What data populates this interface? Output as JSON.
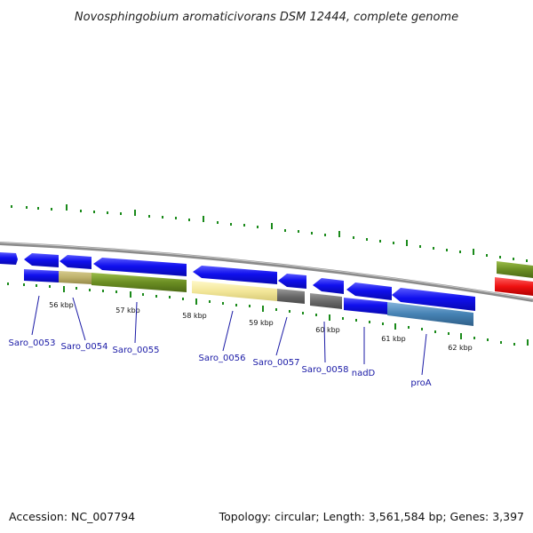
{
  "title": "Novosphingobium aromaticivorans DSM 12444, complete genome",
  "footer": {
    "accession": "Accession: NC_007794",
    "topology": "Topology: circular; Length: 3,561,584 bp; Genes: 3,397"
  },
  "colors": {
    "gene_blue": "#1010ee",
    "backbone": "#8a8a8a",
    "tick": "#1a8a1a",
    "label": "#1a1aa6"
  },
  "ticks": [
    "56 kbp",
    "57 kbp",
    "58 kbp",
    "59 kbp",
    "60 kbp",
    "61 kbp",
    "62 kbp"
  ],
  "genes": [
    "Saro_0053",
    "Saro_0054",
    "Saro_0055",
    "Saro_0056",
    "Saro_0057",
    "Saro_0058",
    "nadD",
    "proA"
  ]
}
